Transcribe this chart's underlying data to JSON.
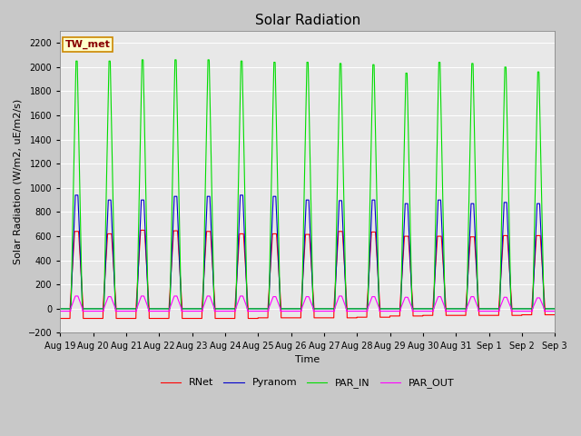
{
  "title": "Solar Radiation",
  "ylabel": "Solar Radiation (W/m2, uE/m2/s)",
  "xlabel": "Time",
  "ylim": [
    -200,
    2300
  ],
  "yticks": [
    -200,
    0,
    200,
    400,
    600,
    800,
    1000,
    1200,
    1400,
    1600,
    1800,
    2000,
    2200
  ],
  "num_days": 15,
  "xtick_labels": [
    "Aug 19",
    "Aug 20",
    "Aug 21",
    "Aug 22",
    "Aug 23",
    "Aug 24",
    "Aug 25",
    "Aug 26",
    "Aug 27",
    "Aug 28",
    "Aug 29",
    "Aug 30",
    "Aug 31",
    "Sep 1",
    "Sep 2",
    "Sep 3"
  ],
  "colors": {
    "RNet": "#ff0000",
    "Pyranom": "#0000cc",
    "PAR_IN": "#00dd00",
    "PAR_OUT": "#ff00ff"
  },
  "lw": 0.8,
  "site_label": "TW_met",
  "site_label_color": "#880000",
  "site_box_facecolor": "#ffffcc",
  "site_box_edgecolor": "#cc8800",
  "fig_bg": "#c8c8c8",
  "plot_bg": "#e8e8e8",
  "grid_color": "#ffffff",
  "title_fontsize": 11,
  "ylabel_fontsize": 8,
  "xlabel_fontsize": 8,
  "tick_fontsize": 7,
  "legend_fontsize": 8,
  "rnet_peaks": [
    640,
    620,
    650,
    645,
    640,
    620,
    620,
    615,
    640,
    635,
    600,
    600,
    595,
    605,
    605
  ],
  "pyranom_peaks": [
    940,
    900,
    900,
    930,
    930,
    940,
    930,
    900,
    895,
    900,
    870,
    900,
    870,
    880,
    870
  ],
  "par_in_peaks": [
    2050,
    2050,
    2060,
    2060,
    2060,
    2050,
    2040,
    2040,
    2030,
    2020,
    1950,
    2040,
    2030,
    2000,
    1960
  ],
  "par_out_peaks": [
    105,
    100,
    105,
    105,
    105,
    105,
    100,
    100,
    105,
    100,
    95,
    100,
    100,
    95,
    90
  ],
  "rnet_nights": [
    -80,
    -80,
    -80,
    -80,
    -80,
    -80,
    -75,
    -75,
    -75,
    -70,
    -60,
    -55,
    -55,
    -55,
    -50
  ]
}
